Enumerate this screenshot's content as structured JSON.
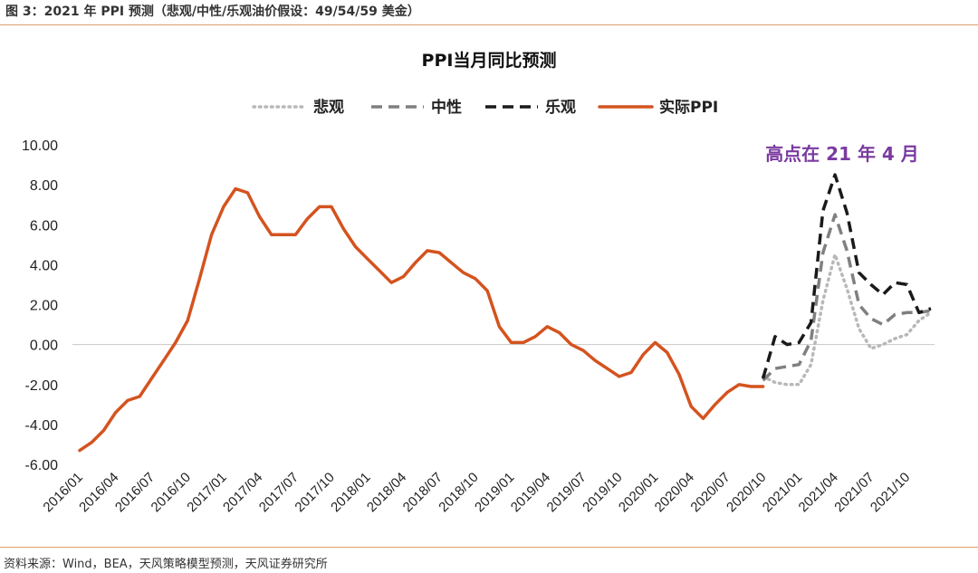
{
  "caption": "图 3：2021 年 PPI 预测（悲观/中性/乐观油价假设：49/54/59 美金）",
  "source": "资料来源：Wind，BEA，天风策略模型预测，天风证券研究所",
  "colors": {
    "actual": "#d4531f",
    "pessimistic": "#b8b8b8",
    "neutral": "#808080",
    "optimistic": "#1a1a1a",
    "annotation": "#7a3aa0",
    "rule": "#e0a070"
  },
  "chart_data": {
    "type": "line",
    "title": "PPI当月同比预测",
    "legend_position": "top-center",
    "grid": false,
    "ylim": [
      -6,
      10
    ],
    "yticks": [
      "10.00",
      "8.00",
      "6.00",
      "4.00",
      "2.00",
      "0.00",
      "-2.00",
      "-4.00",
      "-6.00"
    ],
    "ytick_values": [
      10,
      8,
      6,
      4,
      2,
      0,
      -2,
      -4,
      -6
    ],
    "xticks": [
      "2016/01",
      "2016/04",
      "2016/07",
      "2016/10",
      "2017/01",
      "2017/04",
      "2017/07",
      "2017/10",
      "2018/01",
      "2018/04",
      "2018/07",
      "2018/10",
      "2019/01",
      "2019/04",
      "2019/07",
      "2019/10",
      "2020/01",
      "2020/04",
      "2020/07",
      "2020/10",
      "2021/01",
      "2021/04",
      "2021/07",
      "2021/10"
    ],
    "annotation": "高点在 21 年 4 月",
    "series": [
      {
        "name": "悲观",
        "style": "dotted",
        "x": [
          "2020/10",
          "2020/11",
          "2020/12",
          "2021/01",
          "2021/02",
          "2021/03",
          "2021/04",
          "2021/05",
          "2021/06",
          "2021/07",
          "2021/08",
          "2021/09",
          "2021/10",
          "2021/11",
          "2021/12"
        ],
        "values": [
          -1.6,
          -1.9,
          -2.0,
          -2.0,
          -1.0,
          2.2,
          4.5,
          2.8,
          0.8,
          -0.2,
          0.0,
          0.3,
          0.5,
          1.2,
          1.6
        ]
      },
      {
        "name": "中性",
        "style": "dashed",
        "x": [
          "2020/10",
          "2020/11",
          "2020/12",
          "2021/01",
          "2021/02",
          "2021/03",
          "2021/04",
          "2021/05",
          "2021/06",
          "2021/07",
          "2021/08",
          "2021/09",
          "2021/10",
          "2021/11",
          "2021/12"
        ],
        "values": [
          -1.8,
          -1.2,
          -1.1,
          -1.0,
          0.2,
          4.6,
          6.5,
          4.7,
          2.0,
          1.3,
          1.0,
          1.5,
          1.6,
          1.6,
          1.7
        ]
      },
      {
        "name": "乐观",
        "style": "dashed",
        "x": [
          "2020/10",
          "2020/11",
          "2020/12",
          "2021/01",
          "2021/02",
          "2021/03",
          "2021/04",
          "2021/05",
          "2021/06",
          "2021/07",
          "2021/08",
          "2021/09",
          "2021/10",
          "2021/11",
          "2021/12"
        ],
        "values": [
          -1.7,
          0.4,
          0.0,
          0.1,
          1.1,
          6.7,
          8.5,
          6.6,
          3.6,
          3.0,
          2.5,
          3.1,
          3.0,
          1.6,
          1.8
        ]
      },
      {
        "name": "实际PPI",
        "style": "solid",
        "x": [
          "2016/01",
          "2016/02",
          "2016/03",
          "2016/04",
          "2016/05",
          "2016/06",
          "2016/07",
          "2016/08",
          "2016/09",
          "2016/10",
          "2016/11",
          "2016/12",
          "2017/01",
          "2017/02",
          "2017/03",
          "2017/04",
          "2017/05",
          "2017/06",
          "2017/07",
          "2017/08",
          "2017/09",
          "2017/10",
          "2017/11",
          "2017/12",
          "2018/01",
          "2018/02",
          "2018/03",
          "2018/04",
          "2018/05",
          "2018/06",
          "2018/07",
          "2018/08",
          "2018/09",
          "2018/10",
          "2018/11",
          "2018/12",
          "2019/01",
          "2019/02",
          "2019/03",
          "2019/04",
          "2019/05",
          "2019/06",
          "2019/07",
          "2019/08",
          "2019/09",
          "2019/10",
          "2019/11",
          "2019/12",
          "2020/01",
          "2020/02",
          "2020/03",
          "2020/04",
          "2020/05",
          "2020/06",
          "2020/07",
          "2020/08",
          "2020/09",
          "2020/10"
        ],
        "values": [
          -5.3,
          -4.9,
          -4.3,
          -3.4,
          -2.8,
          -2.6,
          -1.7,
          -0.8,
          0.1,
          1.2,
          3.3,
          5.5,
          6.9,
          7.8,
          7.6,
          6.4,
          5.5,
          5.5,
          5.5,
          6.3,
          6.9,
          6.9,
          5.8,
          4.9,
          4.3,
          3.7,
          3.1,
          3.4,
          4.1,
          4.7,
          4.6,
          4.1,
          3.6,
          3.3,
          2.7,
          0.9,
          0.1,
          0.1,
          0.4,
          0.9,
          0.6,
          0.0,
          -0.3,
          -0.8,
          -1.2,
          -1.6,
          -1.4,
          -0.5,
          0.1,
          -0.4,
          -1.5,
          -3.1,
          -3.7,
          -3.0,
          -2.4,
          -2.0,
          -2.1,
          -2.1
        ]
      }
    ]
  }
}
